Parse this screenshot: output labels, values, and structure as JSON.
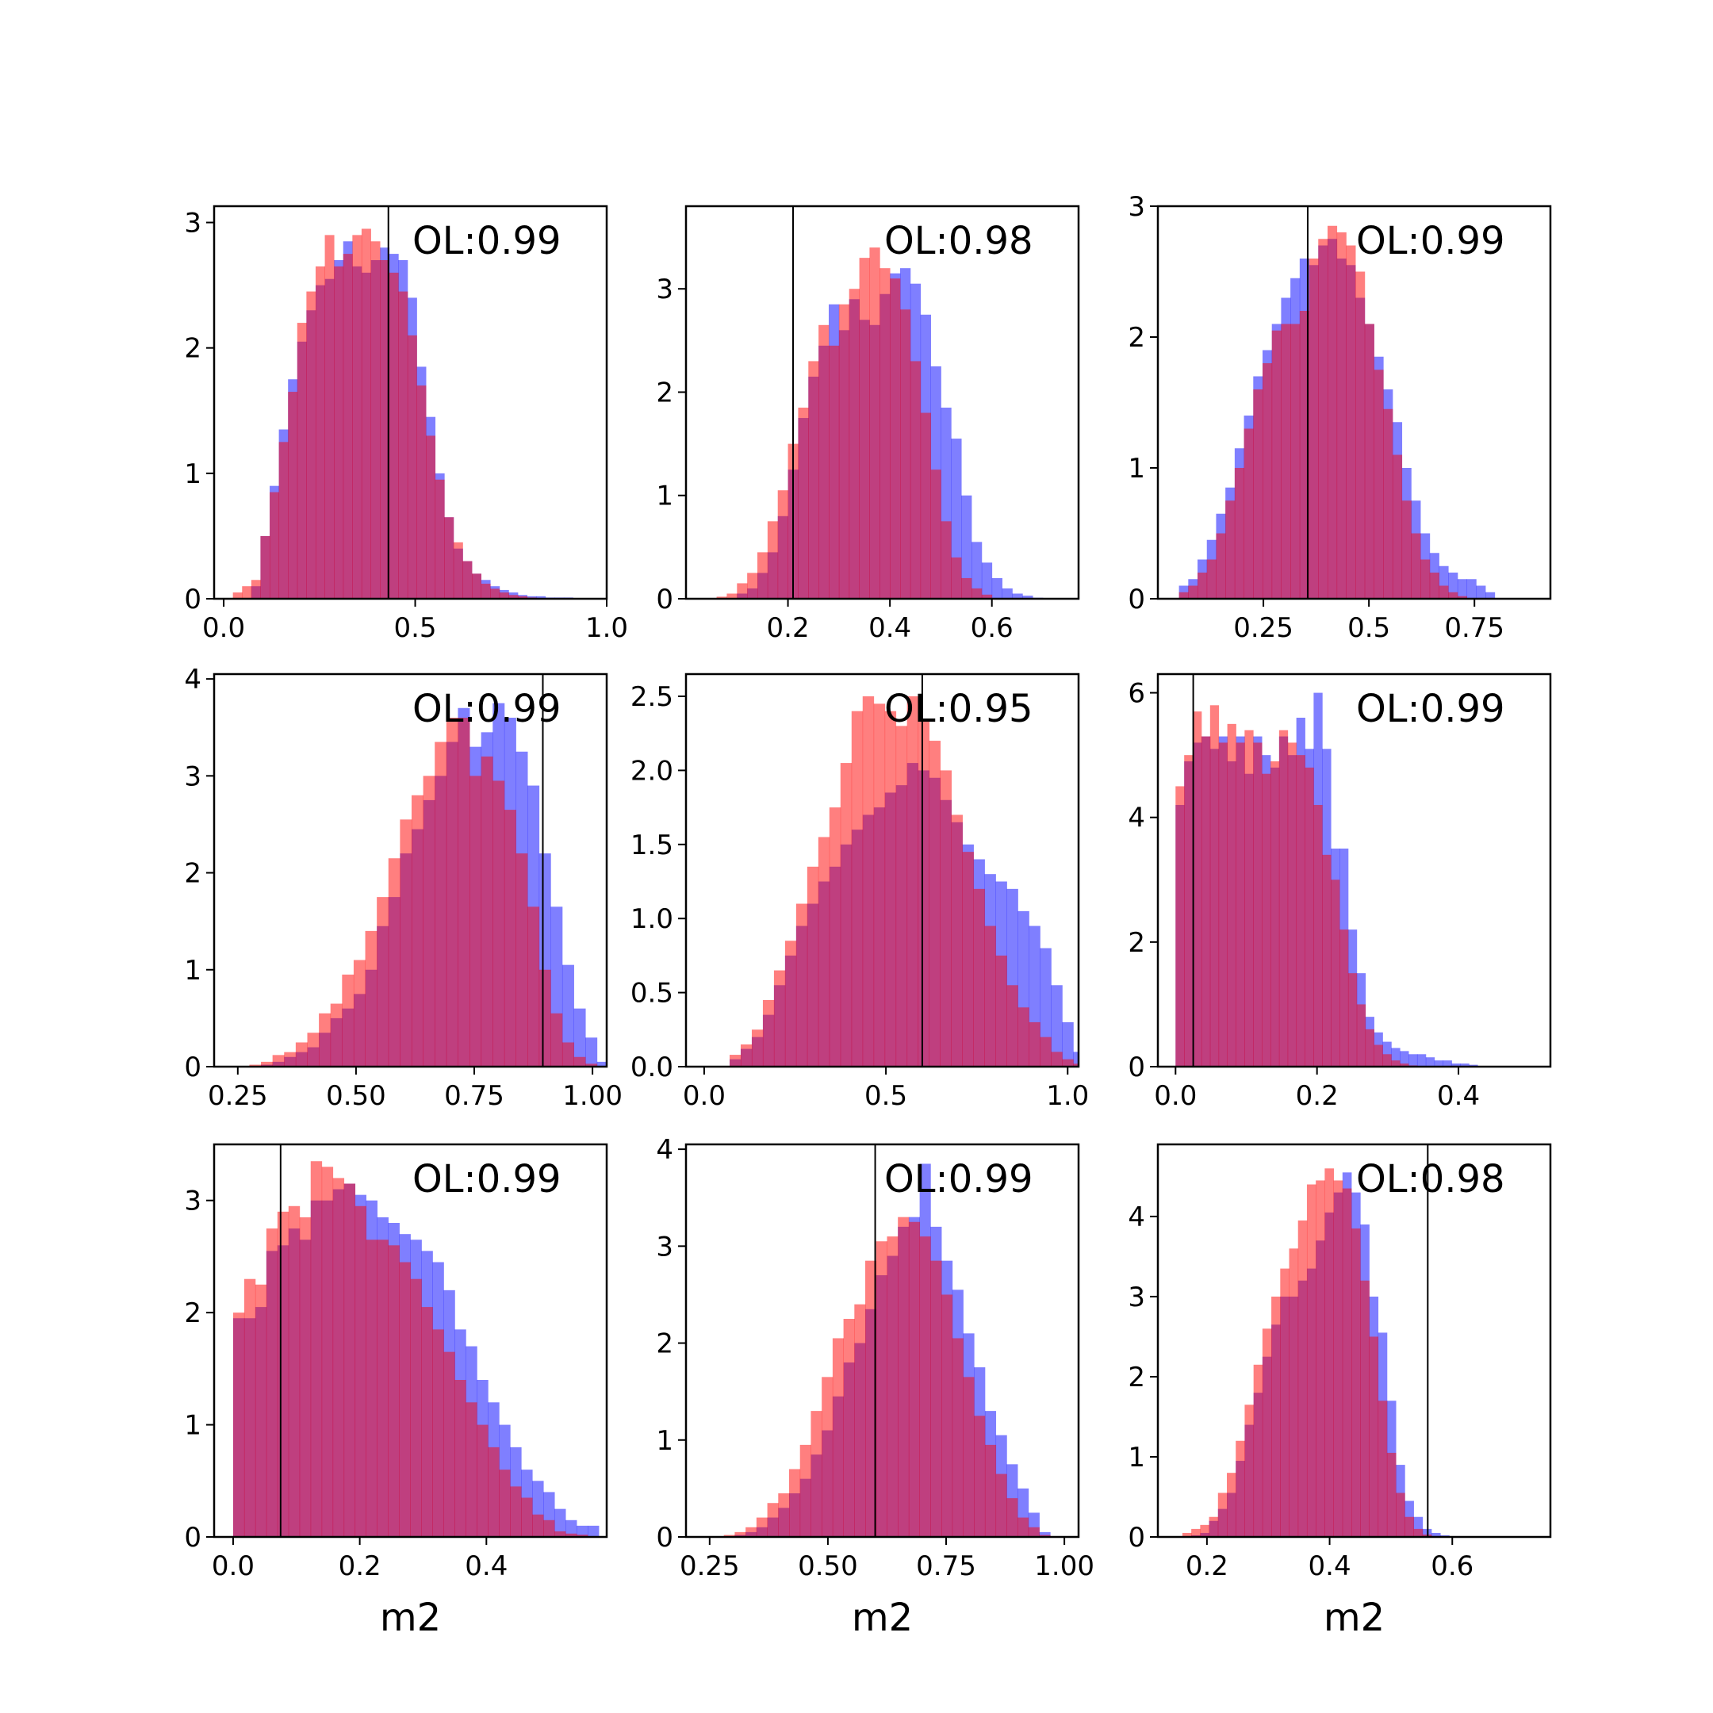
{
  "chart_data": [
    {
      "type": "histogram",
      "row": 0,
      "col": 0,
      "xlim": [
        -0.025,
        1.0
      ],
      "ylim": [
        0,
        3.13
      ],
      "xticks": [
        {
          "v": 0.0,
          "label": "0.0"
        },
        {
          "v": 0.5,
          "label": "0.5"
        },
        {
          "v": 1.0,
          "label": "1.0"
        }
      ],
      "yticks": [
        {
          "v": 0,
          "label": "0"
        },
        {
          "v": 1,
          "label": "1"
        },
        {
          "v": 2,
          "label": "2"
        },
        {
          "v": 3,
          "label": "3"
        }
      ],
      "vline": 0.43,
      "annotation": "OL:0.99",
      "xlabel": "",
      "bin_start": 0.0,
      "bin_width": 0.024,
      "blue": [
        0.0,
        0.0,
        0.0,
        0.1,
        0.5,
        0.9,
        1.35,
        1.75,
        2.05,
        2.3,
        2.5,
        2.55,
        2.7,
        2.85,
        2.65,
        2.6,
        2.7,
        2.8,
        2.75,
        2.7,
        2.4,
        1.85,
        1.45,
        1.0,
        0.65,
        0.4,
        0.3,
        0.2,
        0.15,
        0.1,
        0.07,
        0.05,
        0.03,
        0.02,
        0.02,
        0.01,
        0.01,
        0.01,
        0.0,
        0.0,
        0.0,
        0.0
      ],
      "red": [
        0.0,
        0.05,
        0.1,
        0.15,
        0.5,
        0.85,
        1.25,
        1.65,
        2.2,
        2.45,
        2.65,
        2.9,
        2.65,
        2.75,
        2.9,
        2.95,
        2.85,
        2.7,
        2.6,
        2.45,
        2.1,
        1.7,
        1.3,
        0.95,
        0.65,
        0.45,
        0.3,
        0.2,
        0.12,
        0.08,
        0.05,
        0.03,
        0.02,
        0.01,
        0.0,
        0.0,
        0.0,
        0.0,
        0.0,
        0.0,
        0.0,
        0.0
      ]
    },
    {
      "type": "histogram",
      "row": 0,
      "col": 1,
      "xlim": [
        0.0,
        0.77
      ],
      "ylim": [
        0,
        3.8
      ],
      "xticks": [
        {
          "v": 0.2,
          "label": "0.2"
        },
        {
          "v": 0.4,
          "label": "0.4"
        },
        {
          "v": 0.6,
          "label": "0.6"
        }
      ],
      "yticks": [
        {
          "v": 0,
          "label": "0"
        },
        {
          "v": 1,
          "label": "1"
        },
        {
          "v": 2,
          "label": "2"
        },
        {
          "v": 3,
          "label": "3"
        }
      ],
      "vline": 0.21,
      "annotation": "OL:0.98",
      "xlabel": "",
      "bin_start": 0.04,
      "bin_width": 0.02,
      "blue": [
        0.0,
        0.0,
        0.0,
        0.05,
        0.1,
        0.25,
        0.45,
        0.8,
        1.25,
        1.75,
        2.15,
        2.45,
        2.85,
        2.6,
        2.9,
        2.7,
        2.65,
        2.95,
        3.15,
        3.2,
        3.05,
        2.75,
        2.25,
        1.85,
        1.55,
        1.0,
        0.55,
        0.35,
        0.2,
        0.1,
        0.05,
        0.03,
        0.01,
        0.0,
        0.0
      ],
      "red": [
        0.0,
        0.02,
        0.05,
        0.15,
        0.25,
        0.45,
        0.75,
        1.05,
        1.5,
        1.85,
        2.3,
        2.65,
        2.45,
        2.85,
        3.0,
        3.3,
        3.4,
        3.2,
        3.1,
        2.8,
        2.3,
        1.8,
        1.25,
        0.75,
        0.4,
        0.2,
        0.1,
        0.04,
        0.0,
        0.0,
        0.0,
        0.0,
        0.0,
        0.0,
        0.0
      ]
    },
    {
      "type": "histogram",
      "row": 0,
      "col": 2,
      "xlim": [
        0.0,
        0.93
      ],
      "ylim": [
        0,
        3.0
      ],
      "xticks": [
        {
          "v": 0.25,
          "label": "0.25"
        },
        {
          "v": 0.5,
          "label": "0.5"
        },
        {
          "v": 0.75,
          "label": "0.75"
        }
      ],
      "yticks": [
        {
          "v": 0,
          "label": "0"
        },
        {
          "v": 1,
          "label": "1"
        },
        {
          "v": 2,
          "label": "2"
        },
        {
          "v": 3,
          "label": "3"
        }
      ],
      "vline": 0.355,
      "annotation": "OL:0.99",
      "xlabel": "",
      "bin_start": 0.05,
      "bin_width": 0.022,
      "blue": [
        0.1,
        0.15,
        0.3,
        0.45,
        0.65,
        0.85,
        1.15,
        1.4,
        1.7,
        1.9,
        2.1,
        2.3,
        2.45,
        2.6,
        2.55,
        2.7,
        2.75,
        2.6,
        2.55,
        2.3,
        2.1,
        1.85,
        1.6,
        1.35,
        1.0,
        0.75,
        0.5,
        0.35,
        0.25,
        0.2,
        0.15,
        0.15,
        0.1,
        0.05,
        0.0,
        0.0,
        0.0,
        0.0,
        0.0
      ],
      "red": [
        0.05,
        0.1,
        0.2,
        0.3,
        0.5,
        0.75,
        1.0,
        1.3,
        1.6,
        1.8,
        2.05,
        2.1,
        2.1,
        2.2,
        2.6,
        2.75,
        2.85,
        2.8,
        2.7,
        2.5,
        2.1,
        1.75,
        1.45,
        1.1,
        0.75,
        0.5,
        0.3,
        0.2,
        0.1,
        0.05,
        0.02,
        0.0,
        0.0,
        0.0,
        0.0,
        0.0,
        0.0,
        0.0,
        0.0
      ]
    },
    {
      "type": "histogram",
      "row": 1,
      "col": 0,
      "xlim": [
        0.2,
        1.03
      ],
      "ylim": [
        0,
        4.05
      ],
      "xticks": [
        {
          "v": 0.25,
          "label": "0.25"
        },
        {
          "v": 0.5,
          "label": "0.50"
        },
        {
          "v": 0.75,
          "label": "0.75"
        },
        {
          "v": 1.0,
          "label": "1.00"
        }
      ],
      "yticks": [
        {
          "v": 0,
          "label": "0"
        },
        {
          "v": 1,
          "label": "1"
        },
        {
          "v": 2,
          "label": "2"
        },
        {
          "v": 3,
          "label": "3"
        },
        {
          "v": 4,
          "label": "4"
        }
      ],
      "vline": 0.895,
      "annotation": "OL:0.99",
      "xlabel": "",
      "bin_start": 0.25,
      "bin_width": 0.0245,
      "blue": [
        0.0,
        0.0,
        0.02,
        0.05,
        0.1,
        0.15,
        0.2,
        0.35,
        0.5,
        0.6,
        0.75,
        1.0,
        1.45,
        1.75,
        2.2,
        2.45,
        2.75,
        3.0,
        3.35,
        3.7,
        3.3,
        3.45,
        3.75,
        3.6,
        3.25,
        2.9,
        2.2,
        1.65,
        1.05,
        0.6,
        0.3,
        0.05
      ],
      "red": [
        0.0,
        0.02,
        0.05,
        0.12,
        0.15,
        0.25,
        0.35,
        0.55,
        0.65,
        0.95,
        1.1,
        1.4,
        1.75,
        2.15,
        2.55,
        2.8,
        3.0,
        3.35,
        3.6,
        3.6,
        3.0,
        3.2,
        2.95,
        2.65,
        2.2,
        1.65,
        1.0,
        0.55,
        0.25,
        0.1,
        0.03,
        0.0
      ]
    },
    {
      "type": "histogram",
      "row": 1,
      "col": 1,
      "xlim": [
        -0.05,
        1.03
      ],
      "ylim": [
        0,
        2.65
      ],
      "xticks": [
        {
          "v": 0.0,
          "label": "0.0"
        },
        {
          "v": 0.5,
          "label": "0.5"
        },
        {
          "v": 1.0,
          "label": "1.0"
        }
      ],
      "yticks": [
        {
          "v": 0.0,
          "label": "0.0"
        },
        {
          "v": 0.5,
          "label": "0.5"
        },
        {
          "v": 1.0,
          "label": "1.0"
        },
        {
          "v": 1.5,
          "label": "1.5"
        },
        {
          "v": 2.0,
          "label": "2.0"
        },
        {
          "v": 2.5,
          "label": "2.5"
        }
      ],
      "vline": 0.6,
      "annotation": "OL:0.95",
      "xlabel": "",
      "bin_start": 0.07,
      "bin_width": 0.0305,
      "blue": [
        0.05,
        0.12,
        0.2,
        0.35,
        0.55,
        0.75,
        0.95,
        1.1,
        1.25,
        1.35,
        1.5,
        1.6,
        1.7,
        1.75,
        1.85,
        1.9,
        2.05,
        2.0,
        1.95,
        1.8,
        1.65,
        1.5,
        1.4,
        1.3,
        1.25,
        1.2,
        1.05,
        0.95,
        0.8,
        0.55,
        0.3,
        0.1
      ],
      "red": [
        0.08,
        0.15,
        0.25,
        0.45,
        0.65,
        0.85,
        1.1,
        1.35,
        1.55,
        1.75,
        2.05,
        2.4,
        2.5,
        2.45,
        2.4,
        2.3,
        2.5,
        2.35,
        2.2,
        2.0,
        1.7,
        1.45,
        1.2,
        0.95,
        0.75,
        0.55,
        0.4,
        0.3,
        0.2,
        0.1,
        0.05,
        0.02
      ]
    },
    {
      "type": "histogram",
      "row": 1,
      "col": 2,
      "xlim": [
        -0.025,
        0.53
      ],
      "ylim": [
        0,
        6.3
      ],
      "xticks": [
        {
          "v": 0.0,
          "label": "0.0"
        },
        {
          "v": 0.2,
          "label": "0.2"
        },
        {
          "v": 0.4,
          "label": "0.4"
        }
      ],
      "yticks": [
        {
          "v": 0,
          "label": "0"
        },
        {
          "v": 2,
          "label": "2"
        },
        {
          "v": 4,
          "label": "4"
        },
        {
          "v": 6,
          "label": "6"
        }
      ],
      "vline": 0.025,
      "annotation": "OL:0.99",
      "xlabel": "",
      "bin_start": 0.0,
      "bin_width": 0.0122,
      "blue": [
        4.2,
        4.9,
        5.2,
        5.3,
        5.1,
        5.3,
        4.9,
        5.3,
        4.7,
        5.3,
        5.0,
        4.8,
        5.3,
        5.0,
        5.6,
        5.1,
        6.0,
        5.1,
        3.5,
        3.5,
        2.2,
        1.5,
        0.8,
        0.55,
        0.4,
        0.3,
        0.25,
        0.2,
        0.2,
        0.15,
        0.1,
        0.1,
        0.05,
        0.05,
        0.03,
        0.0,
        0.0,
        0.0,
        0.0,
        0.0,
        0.0,
        0.0,
        0.0
      ],
      "red": [
        4.5,
        5.0,
        5.7,
        5.3,
        5.8,
        5.2,
        5.5,
        5.2,
        5.4,
        5.2,
        4.7,
        4.9,
        5.4,
        5.2,
        5.0,
        4.8,
        4.2,
        3.4,
        3.0,
        2.2,
        1.5,
        1.0,
        0.6,
        0.35,
        0.2,
        0.1,
        0.05,
        0.02,
        0.0,
        0.0,
        0.0,
        0.0,
        0.0,
        0.0,
        0.0,
        0.0,
        0.0,
        0.0,
        0.0,
        0.0,
        0.0,
        0.0,
        0.0
      ]
    },
    {
      "type": "histogram",
      "row": 2,
      "col": 0,
      "xlim": [
        -0.03,
        0.59
      ],
      "ylim": [
        0,
        3.5
      ],
      "xticks": [
        {
          "v": 0.0,
          "label": "0.0"
        },
        {
          "v": 0.2,
          "label": "0.2"
        },
        {
          "v": 0.4,
          "label": "0.4"
        }
      ],
      "yticks": [
        {
          "v": 0,
          "label": "0"
        },
        {
          "v": 1,
          "label": "1"
        },
        {
          "v": 2,
          "label": "2"
        },
        {
          "v": 3,
          "label": "3"
        }
      ],
      "vline": 0.075,
      "annotation": "OL:0.99",
      "xlabel": "m2",
      "bin_start": 0.0,
      "bin_width": 0.0175,
      "blue": [
        1.95,
        1.95,
        2.05,
        2.55,
        2.6,
        2.75,
        2.65,
        3.0,
        3.0,
        3.1,
        3.15,
        3.05,
        3.0,
        2.85,
        2.8,
        2.7,
        2.65,
        2.55,
        2.45,
        2.2,
        1.85,
        1.7,
        1.4,
        1.2,
        1.0,
        0.8,
        0.6,
        0.5,
        0.4,
        0.25,
        0.15,
        0.1,
        0.1
      ],
      "red": [
        2.0,
        2.3,
        2.25,
        2.75,
        2.9,
        2.95,
        2.85,
        3.35,
        3.3,
        3.2,
        3.15,
        2.95,
        2.65,
        2.65,
        2.6,
        2.45,
        2.3,
        2.05,
        1.85,
        1.65,
        1.4,
        1.2,
        1.0,
        0.8,
        0.6,
        0.45,
        0.35,
        0.2,
        0.15,
        0.05,
        0.03,
        0.02,
        0.0
      ]
    },
    {
      "type": "histogram",
      "row": 2,
      "col": 1,
      "xlim": [
        0.2,
        1.03
      ],
      "ylim": [
        0,
        4.05
      ],
      "xticks": [
        {
          "v": 0.25,
          "label": "0.25"
        },
        {
          "v": 0.5,
          "label": "0.50"
        },
        {
          "v": 0.75,
          "label": "0.75"
        },
        {
          "v": 1.0,
          "label": "1.00"
        }
      ],
      "yticks": [
        {
          "v": 0,
          "label": "0"
        },
        {
          "v": 1,
          "label": "1"
        },
        {
          "v": 2,
          "label": "2"
        },
        {
          "v": 3,
          "label": "3"
        },
        {
          "v": 4,
          "label": "4"
        }
      ],
      "vline": 0.6,
      "annotation": "OL:0.99",
      "xlabel": "m2",
      "bin_start": 0.28,
      "bin_width": 0.023,
      "blue": [
        0.0,
        0.02,
        0.05,
        0.1,
        0.2,
        0.3,
        0.45,
        0.6,
        0.85,
        1.1,
        1.45,
        1.8,
        2.0,
        2.35,
        2.7,
        2.9,
        3.2,
        3.3,
        3.85,
        3.2,
        2.85,
        2.55,
        2.1,
        1.75,
        1.3,
        1.05,
        0.75,
        0.5,
        0.25,
        0.05
      ],
      "red": [
        0.02,
        0.05,
        0.1,
        0.2,
        0.35,
        0.45,
        0.7,
        0.95,
        1.3,
        1.65,
        2.05,
        2.25,
        2.4,
        2.85,
        3.05,
        3.1,
        3.3,
        3.25,
        3.1,
        2.85,
        2.5,
        2.05,
        1.65,
        1.25,
        0.95,
        0.65,
        0.4,
        0.2,
        0.1,
        0.02
      ]
    },
    {
      "type": "histogram",
      "row": 2,
      "col": 2,
      "xlim": [
        0.12,
        0.76
      ],
      "ylim": [
        0,
        4.9
      ],
      "xticks": [
        {
          "v": 0.2,
          "label": "0.2"
        },
        {
          "v": 0.4,
          "label": "0.4"
        },
        {
          "v": 0.6,
          "label": "0.6"
        }
      ],
      "yticks": [
        {
          "v": 0,
          "label": "0"
        },
        {
          "v": 1,
          "label": "1"
        },
        {
          "v": 2,
          "label": "2"
        },
        {
          "v": 3,
          "label": "3"
        },
        {
          "v": 4,
          "label": "4"
        }
      ],
      "vline": 0.56,
      "annotation": "OL:0.98",
      "xlabel": "m2",
      "bin_start": 0.16,
      "bin_width": 0.0145,
      "blue": [
        0.0,
        0.02,
        0.05,
        0.2,
        0.35,
        0.55,
        0.95,
        1.4,
        1.8,
        2.25,
        2.65,
        3.0,
        3.0,
        3.2,
        3.35,
        3.7,
        4.05,
        4.3,
        4.55,
        4.3,
        3.9,
        3.0,
        2.55,
        1.7,
        0.9,
        0.45,
        0.25,
        0.1,
        0.05,
        0.02
      ],
      "red": [
        0.05,
        0.1,
        0.15,
        0.25,
        0.55,
        0.8,
        1.2,
        1.65,
        2.15,
        2.6,
        3.0,
        3.35,
        3.6,
        3.95,
        4.4,
        4.45,
        4.6,
        4.45,
        4.35,
        3.85,
        3.2,
        2.5,
        1.7,
        1.05,
        0.55,
        0.25,
        0.1,
        0.03,
        0.01,
        0.0
      ]
    }
  ]
}
